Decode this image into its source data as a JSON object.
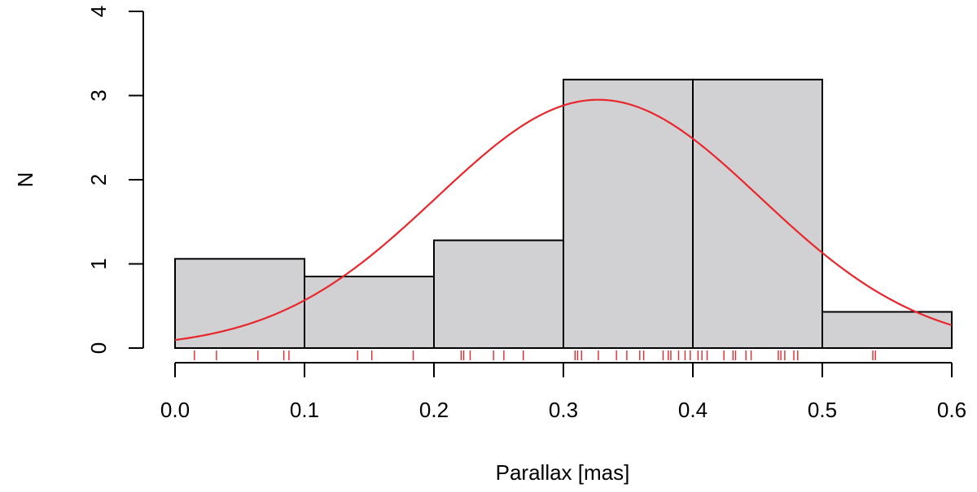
{
  "chart_data": {
    "type": "bar",
    "subtype": "histogram",
    "xlabel": "Parallax [mas]",
    "ylabel": "N",
    "xlim": [
      0.0,
      0.6
    ],
    "ylim": [
      0,
      4
    ],
    "x_ticks": [
      "0.0",
      "0.1",
      "0.2",
      "0.3",
      "0.4",
      "0.5",
      "0.6"
    ],
    "y_ticks": [
      "0",
      "1",
      "2",
      "3",
      "4"
    ],
    "bins": [
      {
        "start": 0.0,
        "end": 0.1,
        "value": 1.06
      },
      {
        "start": 0.1,
        "end": 0.2,
        "value": 0.85
      },
      {
        "start": 0.2,
        "end": 0.3,
        "value": 1.28
      },
      {
        "start": 0.3,
        "end": 0.4,
        "value": 3.19
      },
      {
        "start": 0.4,
        "end": 0.5,
        "value": 3.19
      },
      {
        "start": 0.5,
        "end": 0.6,
        "value": 0.43
      }
    ],
    "fit_curve": {
      "type": "gaussian",
      "mean": 0.327,
      "sigma": 0.125,
      "peak": 2.95
    },
    "rug_values": [
      0.015,
      0.032,
      0.064,
      0.084,
      0.088,
      0.141,
      0.152,
      0.184,
      0.221,
      0.223,
      0.228,
      0.246,
      0.254,
      0.269,
      0.309,
      0.311,
      0.314,
      0.327,
      0.341,
      0.349,
      0.359,
      0.362,
      0.377,
      0.381,
      0.383,
      0.389,
      0.394,
      0.398,
      0.404,
      0.407,
      0.411,
      0.424,
      0.431,
      0.433,
      0.441,
      0.445,
      0.466,
      0.468,
      0.471,
      0.478,
      0.481,
      0.539,
      0.541
    ],
    "colors": {
      "bar_fill": "#d1d1d4",
      "bar_edge": "#000000",
      "curve": "#e8262b",
      "rug": "#e8262b"
    },
    "grid": false,
    "legend": "none"
  }
}
